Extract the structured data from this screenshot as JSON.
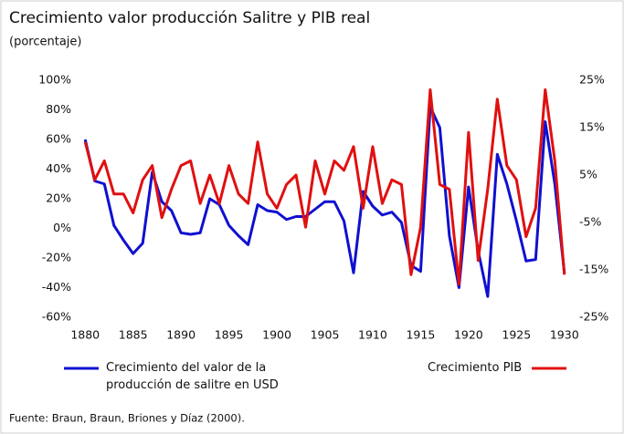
{
  "chart_data": {
    "type": "line",
    "title": "Crecimiento valor producción Salitre y PIB real",
    "subtitle": "(porcentaje)",
    "note": "Fuente: Braun, Braun, Briones y Díaz (2000).",
    "x": [
      1880,
      1881,
      1882,
      1883,
      1884,
      1885,
      1886,
      1887,
      1888,
      1889,
      1890,
      1891,
      1892,
      1893,
      1894,
      1895,
      1896,
      1897,
      1898,
      1899,
      1900,
      1901,
      1902,
      1903,
      1904,
      1905,
      1906,
      1907,
      1908,
      1909,
      1910,
      1911,
      1912,
      1913,
      1914,
      1915,
      1916,
      1917,
      1918,
      1919,
      1920,
      1921,
      1922,
      1923,
      1924,
      1925,
      1926,
      1927,
      1928,
      1929,
      1930
    ],
    "xlim": [
      1879.5,
      1930.5
    ],
    "xticks": [
      1880,
      1885,
      1890,
      1895,
      1900,
      1905,
      1910,
      1915,
      1920,
      1925,
      1930
    ],
    "ylim": [
      -60,
      100
    ],
    "yticks": [
      {
        "value": 100,
        "label": "100%"
      },
      {
        "value": 80,
        "label": "80%"
      },
      {
        "value": 60,
        "label": "60%"
      },
      {
        "value": 40,
        "label": "40%"
      },
      {
        "value": 20,
        "label": "20%"
      },
      {
        "value": 0,
        "label": "0%"
      },
      {
        "value": -20,
        "label": "-20%"
      },
      {
        "value": -40,
        "label": "-40%"
      },
      {
        "value": -60,
        "label": "-60%"
      }
    ],
    "y2lim": [
      -25,
      25
    ],
    "y2ticks": [
      {
        "value": 25,
        "label": "25%"
      },
      {
        "value": 15,
        "label": "15%"
      },
      {
        "value": 5,
        "label": "5%"
      },
      {
        "value": -5,
        "label": "-5%"
      },
      {
        "value": -15,
        "label": "-15%"
      },
      {
        "value": -25,
        "label": "-25%"
      }
    ],
    "series": [
      {
        "name": "Crecimiento del valor de la producción de salitre en USD",
        "color": "#1010d0",
        "values": [
          60,
          32,
          30,
          2,
          -8,
          -17,
          -10,
          38,
          18,
          12,
          -3,
          -4,
          -3,
          20,
          16,
          2,
          -5,
          -11,
          16,
          12,
          11,
          6,
          8,
          8,
          13,
          18,
          18,
          5,
          -30,
          25,
          15,
          9,
          11,
          4,
          -25,
          -29,
          82,
          68,
          -5,
          -40,
          28,
          -15,
          -46,
          50,
          30,
          5,
          -22,
          -21,
          72,
          30,
          -30
        ]
      },
      {
        "name": "Crecimiento PIB",
        "color": "#e01010",
        "axis": "y2",
        "values": [
          12,
          4,
          8,
          1,
          1,
          -3,
          4,
          7,
          -4,
          2,
          7,
          8,
          -1,
          5,
          -1,
          7,
          1,
          -1,
          12,
          1,
          -2,
          3,
          5,
          -6,
          8,
          1,
          8,
          6,
          11,
          -2,
          11,
          -1,
          4,
          3,
          -16,
          -6,
          23,
          3,
          2,
          -18,
          14,
          -13,
          2,
          21,
          7,
          4,
          -8,
          -2,
          23,
          8,
          -16
        ]
      }
    ]
  }
}
